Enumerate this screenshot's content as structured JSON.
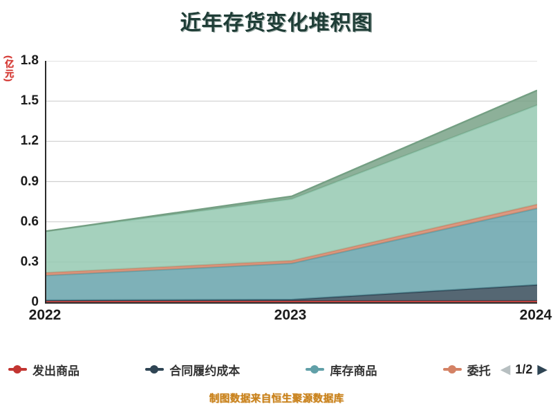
{
  "title": "近年存货变化堆积图",
  "y_axis_name": "(亿元)",
  "footer": "制图数据来自恒生聚源数据库",
  "legend": {
    "items": [
      {
        "label": "发出商品",
        "color": "#c23531"
      },
      {
        "label": "合同履约成本",
        "color": "#2f4554"
      },
      {
        "label": "库存商品",
        "color": "#61a0a8"
      },
      {
        "label": "委托",
        "color": "#d48265"
      }
    ],
    "pager": {
      "text": "1/2",
      "prev_color": "#b7bfc1",
      "next_color": "#2f4554"
    }
  },
  "chart_data": {
    "type": "area",
    "stacked": true,
    "title": "近年存货变化堆积图",
    "ylabel": "(亿元)",
    "x": [
      "2022",
      "2023",
      "2024"
    ],
    "ylim": [
      0,
      1.8
    ],
    "yticks": [
      "0",
      "0.3",
      "0.6",
      "0.9",
      "1.2",
      "1.5",
      "1.8"
    ],
    "grid": true,
    "legend_position": "bottom",
    "series": [
      {
        "name": "发出商品",
        "color": "#c23531",
        "values": [
          0.01,
          0.01,
          0.01
        ]
      },
      {
        "name": "合同履约成本",
        "color": "#2f4554",
        "values": [
          0.005,
          0.01,
          0.12
        ]
      },
      {
        "name": "库存商品",
        "color": "#61a0a8",
        "values": [
          0.185,
          0.27,
          0.57
        ]
      },
      {
        "name": "委托",
        "color": "#d48265",
        "values": [
          0.02,
          0.02,
          0.03
        ]
      },
      {
        "name": "",
        "color": "#91c7ae",
        "values": [
          0.31,
          0.46,
          0.74
        ]
      },
      {
        "name": "",
        "color": "#749f83",
        "values": [
          0.0,
          0.02,
          0.11
        ]
      }
    ]
  }
}
